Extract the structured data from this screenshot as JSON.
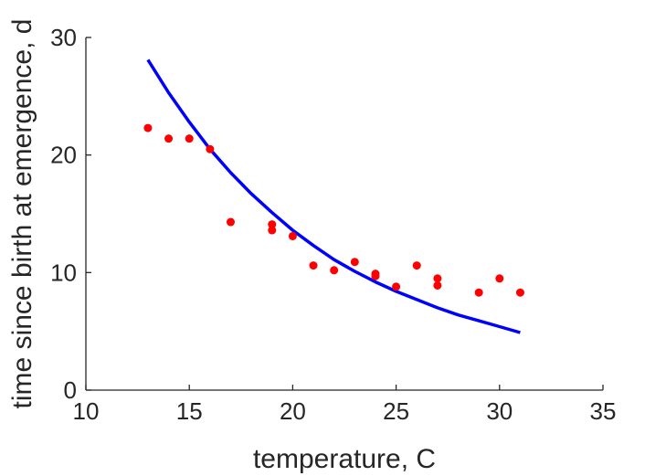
{
  "chart_data": {
    "type": "scatter",
    "xlabel": "temperature, C",
    "ylabel": "time since birth at emergence, d",
    "xlim": [
      10,
      35
    ],
    "ylim": [
      0,
      30
    ],
    "xticks": [
      "10",
      "15",
      "20",
      "25",
      "30",
      "35"
    ],
    "yticks": [
      "0",
      "10",
      "20",
      "30"
    ],
    "grid": false,
    "box": false,
    "series": [
      {
        "kind": "scatter",
        "color": "#ff0000",
        "x": [
          13,
          14,
          15,
          16,
          17,
          19,
          19,
          20,
          21,
          22,
          23,
          24,
          24,
          25,
          26,
          27,
          27,
          29,
          30,
          31
        ],
        "y": [
          22.3,
          21.4,
          21.4,
          20.5,
          14.3,
          14.1,
          13.6,
          13.1,
          10.6,
          10.2,
          10.9,
          9.9,
          9.7,
          8.8,
          10.6,
          9.5,
          8.9,
          8.3,
          9.5,
          8.3
        ]
      },
      {
        "kind": "line",
        "color": "#0000ff",
        "x": [
          13,
          14,
          15,
          16,
          17,
          18,
          19,
          20,
          21,
          22,
          23,
          24,
          25,
          26,
          27,
          28,
          29,
          30,
          31
        ],
        "y": [
          28.1,
          25.3,
          22.8,
          20.5,
          18.5,
          16.7,
          15.1,
          13.6,
          12.3,
          11.1,
          10.1,
          9.2,
          8.4,
          7.7,
          7.0,
          6.4,
          5.9,
          5.4,
          4.9
        ]
      }
    ]
  }
}
